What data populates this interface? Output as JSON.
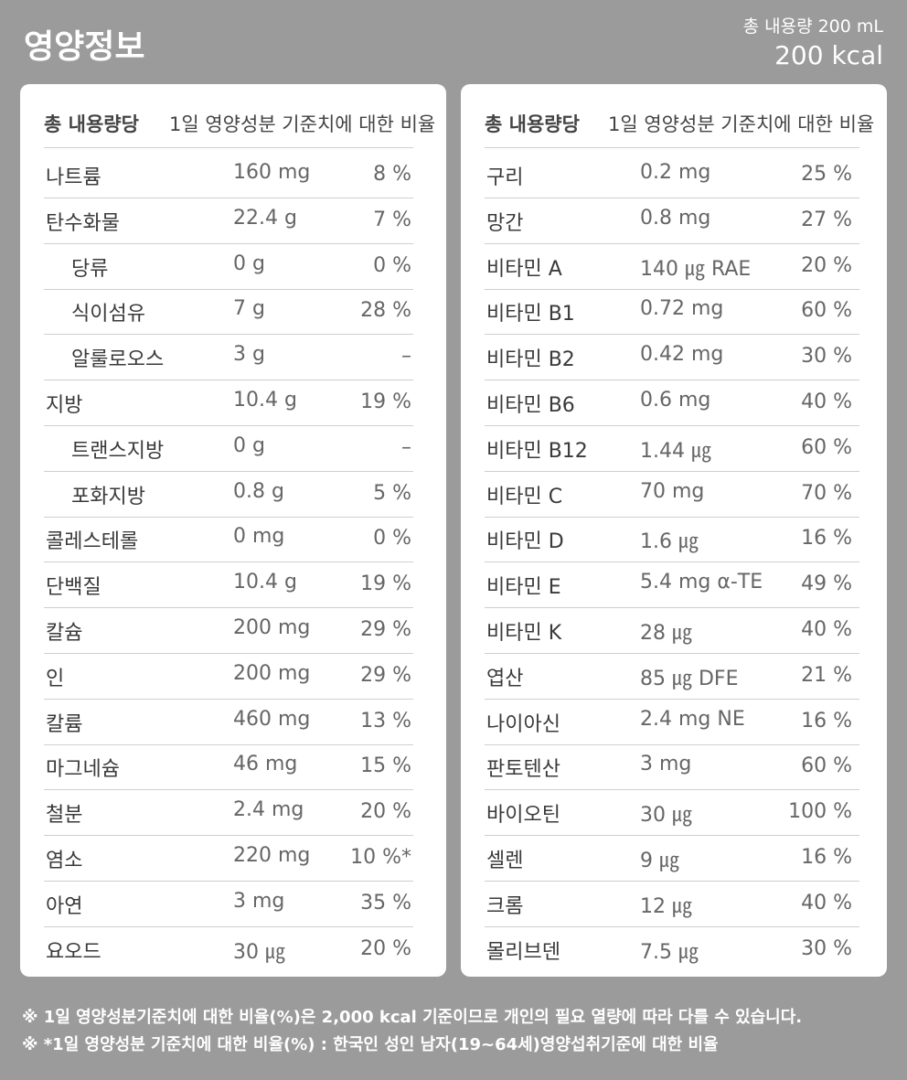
{
  "header": {
    "title": "영양정보",
    "total": "총 내용량 200 mL",
    "kcal": "200 kcal"
  },
  "left": {
    "columns": [
      "총 내용량당",
      "1일 영양성분 기준치에 대한 비율"
    ],
    "rows": [
      {
        "name": "나트륨",
        "amount": "160 mg",
        "percent": "8 %"
      },
      {
        "name": "탄수화물",
        "amount": "22.4 g",
        "percent": "7 %",
        "items": [
          {
            "name": "당류",
            "amount": "0 g",
            "percent": "0 %"
          },
          {
            "name": "식이섬유",
            "amount": "7 g",
            "percent": "28 %"
          },
          {
            "name": "알룰로오스",
            "amount": "3 g",
            "percent": "–"
          }
        ]
      },
      {
        "name": "지방",
        "amount": "10.4 g",
        "percent": "19 %",
        "items": [
          {
            "name": "트랜스지방",
            "amount": "0 g",
            "percent": "–"
          },
          {
            "name": "포화지방",
            "amount": "0.8 g",
            "percent": "5 %"
          }
        ]
      },
      {
        "name": "콜레스테롤",
        "amount": "0 mg",
        "percent": "0 %"
      },
      {
        "name": "단백질",
        "amount": "10.4 g",
        "percent": "19 %"
      },
      {
        "name": "칼슘",
        "amount": "200 mg",
        "percent": "29 %"
      },
      {
        "name": "인",
        "amount": "200 mg",
        "percent": "29 %"
      },
      {
        "name": "칼륨",
        "amount": "460 mg",
        "percent": "13 %"
      },
      {
        "name": "마그네슘",
        "amount": "46 mg",
        "percent": "15 %"
      },
      {
        "name": "철분",
        "amount": "2.4 mg",
        "percent": "20 %"
      },
      {
        "name": "염소",
        "amount": "220 mg",
        "percent": "10 %*"
      },
      {
        "name": "아연",
        "amount": "3 mg",
        "percent": "35 %"
      },
      {
        "name": "요오드",
        "amount": "30 ㎍",
        "percent": "20 %"
      }
    ]
  },
  "right": {
    "columns": [
      "총 내용량당",
      "1일 영양성분 기준치에 대한 비율"
    ],
    "rows": [
      {
        "name": "구리",
        "amount": "0.2 mg",
        "percent": "25 %"
      },
      {
        "name": "망간",
        "amount": "0.8 mg",
        "percent": "27 %"
      },
      {
        "name": "비타민 A",
        "amount": "140 ㎍ RAE",
        "percent": "20 %"
      },
      {
        "name": "비타민 B1",
        "amount": "0.72 mg",
        "percent": "60 %"
      },
      {
        "name": "비타민 B2",
        "amount": "0.42 mg",
        "percent": "30 %"
      },
      {
        "name": "비타민 B6",
        "amount": "0.6 mg",
        "percent": "40 %"
      },
      {
        "name": "비타민 B12",
        "amount": "1.44 ㎍",
        "percent": "60 %"
      },
      {
        "name": "비타민 C",
        "amount": "70 mg",
        "percent": "70 %"
      },
      {
        "name": "비타민 D",
        "amount": "1.6 ㎍",
        "percent": "16 %"
      },
      {
        "name": "비타민 E",
        "amount": "5.4 mg α-TE",
        "percent": "49 %"
      },
      {
        "name": "비타민 K",
        "amount": "28 ㎍",
        "percent": "40 %"
      },
      {
        "name": "엽산",
        "amount": "85 ㎍ DFE",
        "percent": "21 %"
      },
      {
        "name": "나이아신",
        "amount": "2.4 mg NE",
        "percent": "16 %"
      },
      {
        "name": "판토텐산",
        "amount": "3 mg",
        "percent": "60 %"
      },
      {
        "name": "바이오틴",
        "amount": "30 ㎍",
        "percent": "100 %"
      },
      {
        "name": "셀렌",
        "amount": "9 ㎍",
        "percent": "16 %"
      },
      {
        "name": "크롬",
        "amount": "12 ㎍",
        "percent": "40 %"
      },
      {
        "name": "몰리브덴",
        "amount": "7.5 ㎍",
        "percent": "30 %"
      }
    ]
  },
  "footnotes": [
    "※ 1일 영양성분기준치에 대한 비율(%)은 2,000 kcal 기준이므로 개인의 필요 열량에 따라 다를 수 있습니다.",
    "※ *1일 영양성분 기준치에 대한 비율(%) : 한국인 성인 남자(19~64세)영양섭취기준에 대한 비율"
  ]
}
